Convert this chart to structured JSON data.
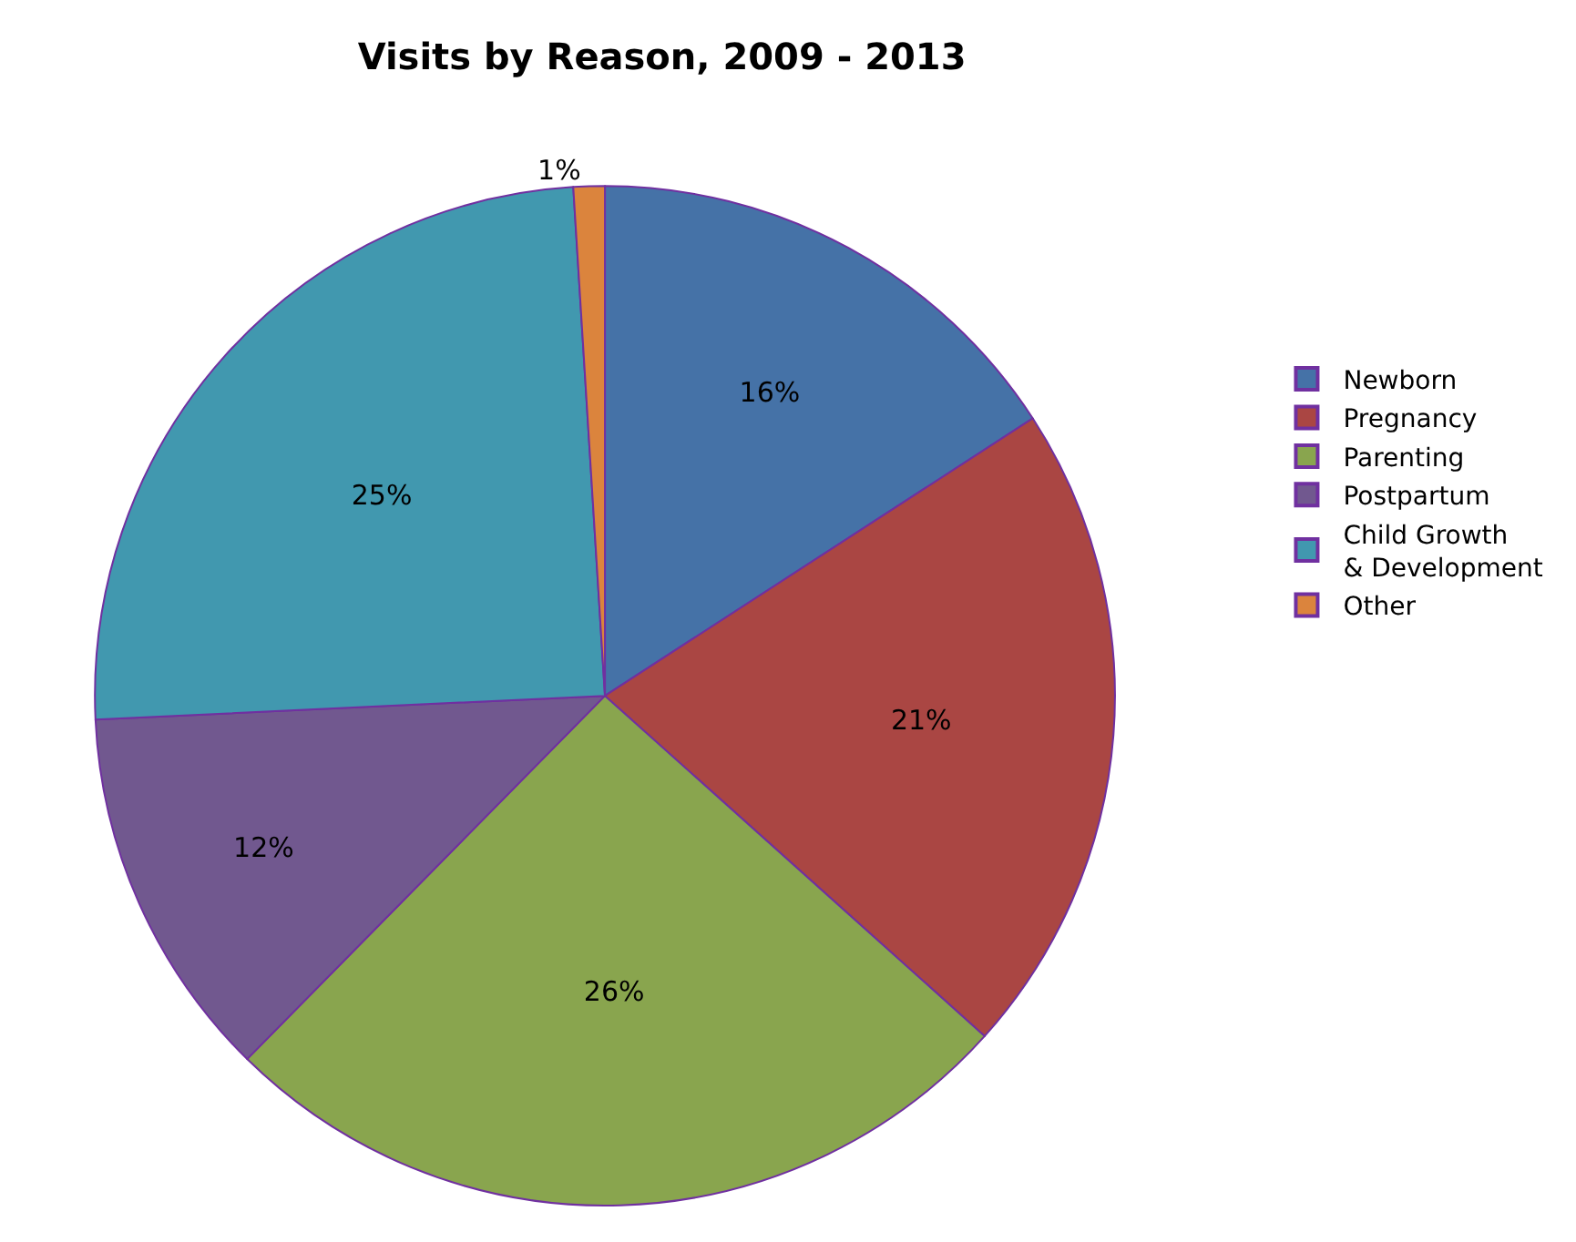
{
  "chart_data": {
    "type": "pie",
    "title": "Visits by Reason, 2009 - 2013",
    "categories": [
      "Newborn",
      "Pregnancy",
      "Parenting",
      "Postpartum",
      "Child Growth & Development",
      "Other"
    ],
    "values": [
      16,
      21,
      26,
      12,
      25,
      1
    ],
    "value_labels": [
      "16%",
      "21%",
      "26%",
      "12%",
      "25%",
      "1%"
    ],
    "colors": [
      "#4572a7",
      "#aa4643",
      "#89a54e",
      "#71588f",
      "#4198af",
      "#db843d"
    ],
    "legend": "right"
  }
}
